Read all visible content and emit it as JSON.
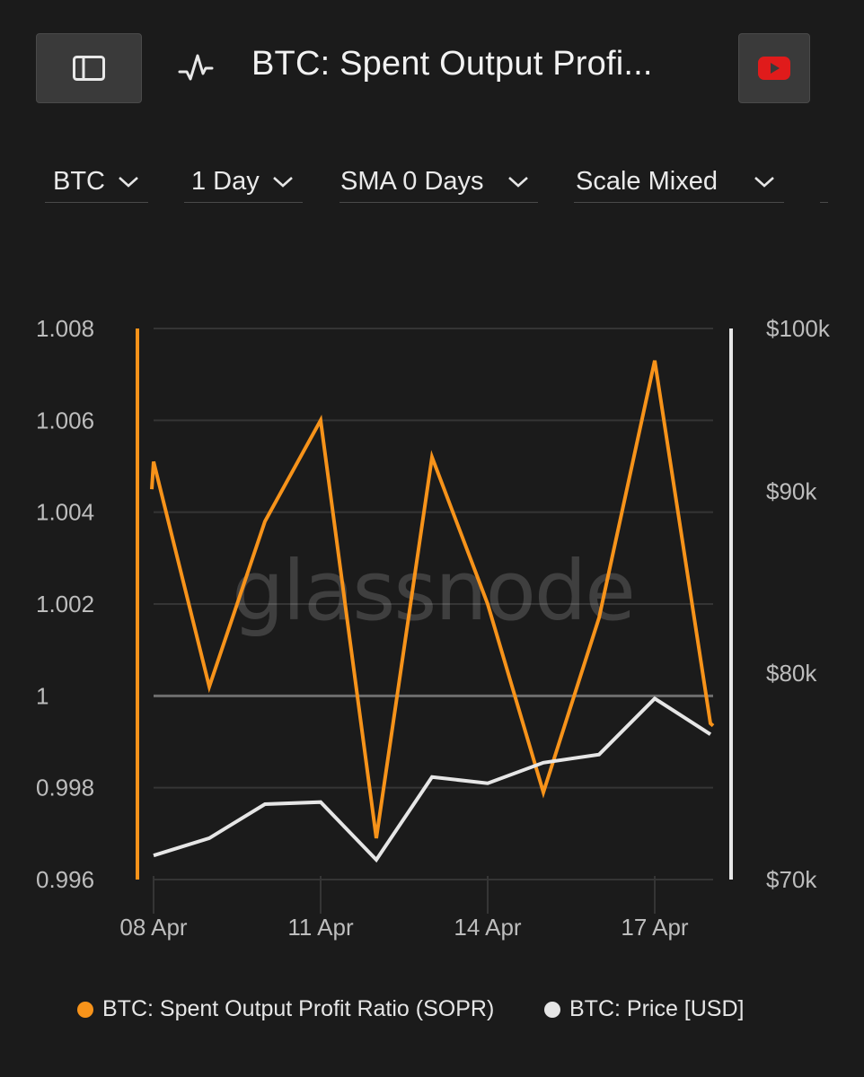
{
  "header": {
    "title": "BTC: Spent Output Profi...",
    "sidebar_icon": "sidebar-toggle-icon",
    "metric_icon": "pulse-icon",
    "video_icon": "youtube-icon"
  },
  "controls": {
    "asset": "BTC",
    "resolution": "1 Day",
    "sma": "SMA 0 Days",
    "scale": "Scale Mixed"
  },
  "watermark": "glassnode",
  "chart_data": {
    "type": "line",
    "x": [
      "08 Apr",
      "09 Apr",
      "10 Apr",
      "11 Apr",
      "12 Apr",
      "13 Apr",
      "14 Apr",
      "15 Apr",
      "16 Apr",
      "17 Apr",
      "18 Apr"
    ],
    "x_ticks": [
      "08 Apr",
      "11 Apr",
      "14 Apr",
      "17 Apr"
    ],
    "series": [
      {
        "name": "BTC: Spent Output Profit Ratio (SOPR)",
        "axis": "left",
        "color": "#f7931a",
        "values": [
          1.0051,
          1.0002,
          1.0038,
          1.006,
          0.9969,
          1.0052,
          1.002,
          0.9979,
          1.0017,
          1.0073,
          0.9994
        ]
      },
      {
        "name": "BTC: Price [USD]",
        "axis": "right",
        "color": "#e6e6e6",
        "values": [
          71100,
          71900,
          73500,
          73600,
          70900,
          74800,
          74500,
          75500,
          75900,
          78700,
          76900
        ]
      }
    ],
    "y_left": {
      "ticks": [
        "1.008",
        "1.006",
        "1.004",
        "1.002",
        "1",
        "0.998",
        "0.996"
      ],
      "range": [
        0.996,
        1.008
      ]
    },
    "y_right": {
      "ticks": [
        "$100k",
        "$90k",
        "$80k",
        "$70k"
      ],
      "values": [
        100000,
        90000,
        80000,
        70000
      ],
      "scale": "log"
    },
    "reference_line": 1.0,
    "grid": true,
    "legend": "bottom"
  },
  "legend": [
    {
      "label": "BTC: Spent Output Profit Ratio (SOPR)",
      "color": "#f7931a"
    },
    {
      "label": "BTC: Price [USD]",
      "color": "#e6e6e6"
    }
  ]
}
